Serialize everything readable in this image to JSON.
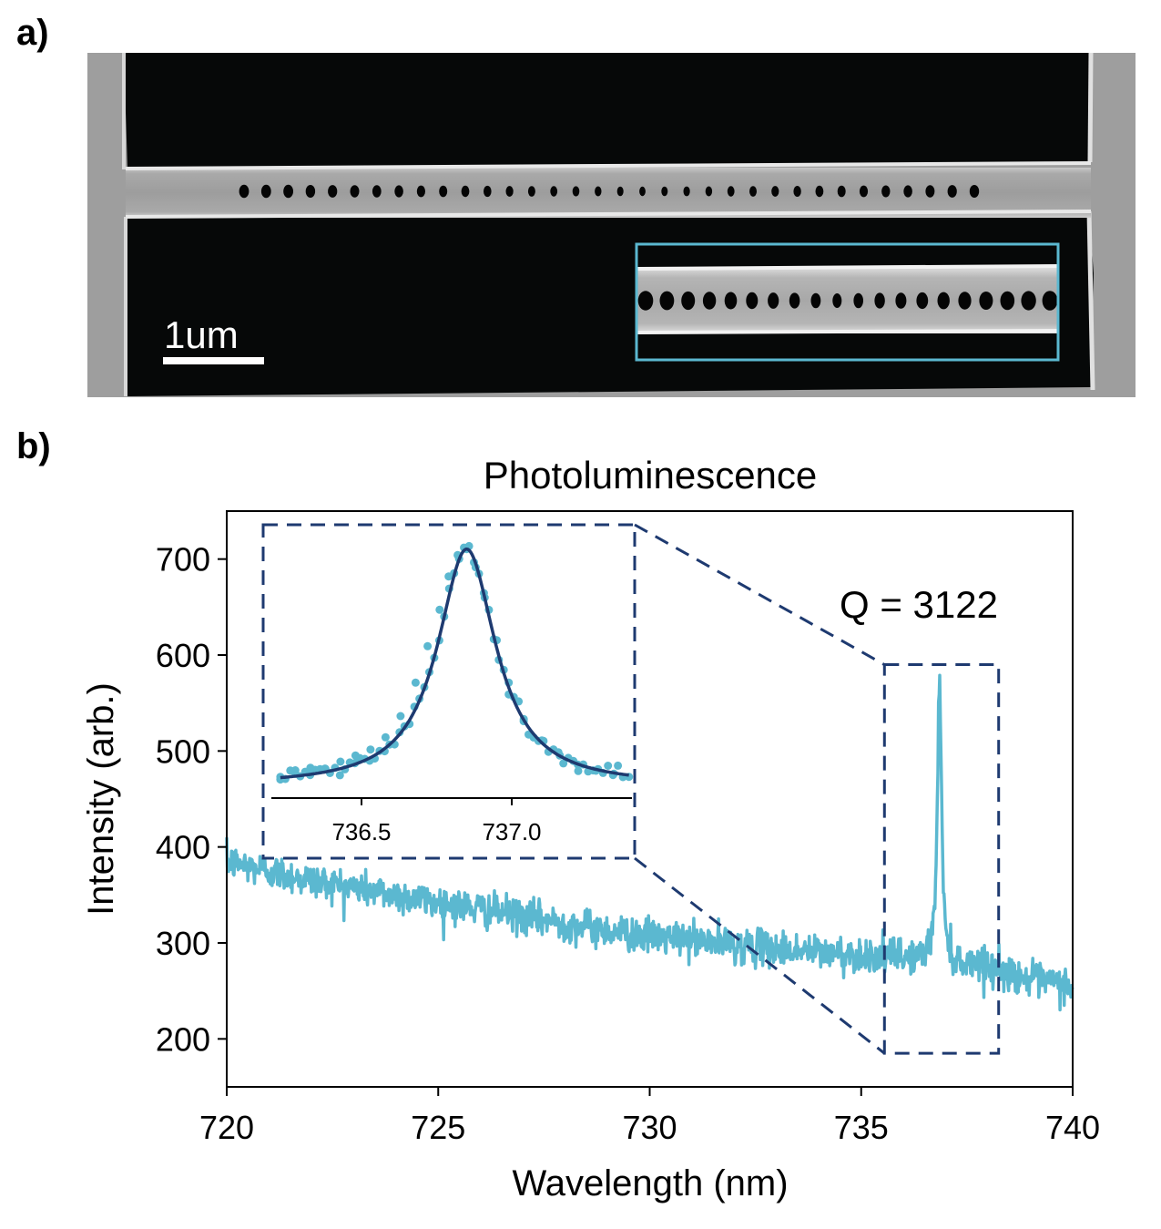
{
  "panels": {
    "a_label": "a)",
    "b_label": "b)"
  },
  "sem": {
    "scale_bar_label": "1um",
    "inset_box_color": "#5bb8d0",
    "hole_count": 34,
    "inset_hole_count": 20
  },
  "colors": {
    "data": "#5bb8d0",
    "fit": "#1e3a70",
    "zoom_box": "#1e3a70"
  },
  "chart_data": [
    {
      "type": "line",
      "title": "Photoluminescence",
      "xlabel": "Wavelength (nm)",
      "ylabel": "Intensity (arb.)",
      "xlim": [
        720,
        740
      ],
      "ylim": [
        150,
        750
      ],
      "xticks": [
        720,
        725,
        730,
        735,
        740
      ],
      "yticks": [
        200,
        300,
        400,
        500,
        600,
        700
      ],
      "annotation": "Q = 3122",
      "series": [
        {
          "style": "noisy spectrum",
          "x": [
            720,
            721,
            722,
            723,
            724,
            725,
            726,
            727,
            728,
            729,
            730,
            731,
            732,
            733,
            734,
            735,
            736,
            736.5,
            736.7,
            736.8,
            736.85,
            736.9,
            737.0,
            737.2,
            737.5,
            738,
            739,
            740
          ],
          "y": [
            385,
            375,
            365,
            358,
            350,
            342,
            335,
            328,
            320,
            313,
            307,
            303,
            298,
            294,
            290,
            287,
            285,
            300,
            380,
            520,
            570,
            520,
            380,
            300,
            285,
            275,
            262,
            255
          ]
        }
      ],
      "zoom_region": {
        "x": [
          735.55,
          738.25
        ],
        "y": [
          185,
          590
        ]
      }
    },
    {
      "type": "scatter",
      "role": "inset",
      "xlim": [
        736.2,
        737.4
      ],
      "xticks": [
        "736.5",
        "737.0"
      ],
      "series": [
        {
          "style": "points",
          "x": [
            736.23,
            736.28,
            736.33,
            736.38,
            736.43,
            736.48,
            736.53,
            736.58,
            736.63,
            736.68,
            736.72,
            736.76,
            736.79,
            736.82,
            736.85,
            736.88,
            736.91,
            736.95,
            736.99,
            737.04,
            737.1,
            737.16,
            737.22,
            737.28,
            737.34,
            737.39
          ],
          "y": [
            285,
            290,
            300,
            298,
            310,
            320,
            330,
            350,
            385,
            440,
            500,
            560,
            615,
            650,
            660,
            630,
            580,
            510,
            440,
            380,
            345,
            320,
            305,
            295,
            290,
            285
          ]
        },
        {
          "style": "lorentzian fit",
          "center": 736.85,
          "fwhm": 0.236,
          "peak": 660,
          "baseline": 270
        }
      ]
    }
  ]
}
